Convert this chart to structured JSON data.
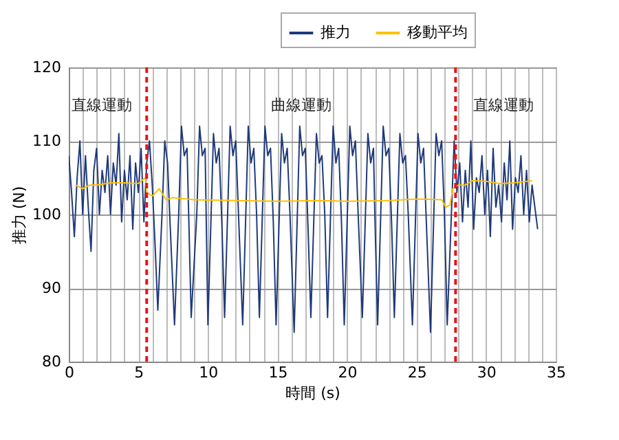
{
  "chart_data": {
    "type": "line",
    "xlabel": "時間 (s)",
    "ylabel": "推力 (N)",
    "xlim": [
      0,
      35
    ],
    "ylim": [
      80,
      120
    ],
    "xticks": [
      0,
      {
        "value": 1,
        "label": null
      },
      {
        "value": 2,
        "label": null
      },
      {
        "value": 3,
        "label": null
      },
      {
        "value": 4,
        "label": null
      },
      5,
      {
        "value": 6,
        "label": null
      },
      {
        "value": 7,
        "label": null
      },
      {
        "value": 8,
        "label": null
      },
      {
        "value": 9,
        "label": null
      },
      10,
      {
        "value": 11,
        "label": null
      },
      {
        "value": 12,
        "label": null
      },
      {
        "value": 13,
        "label": null
      },
      {
        "value": 14,
        "label": null
      },
      15,
      {
        "value": 16,
        "label": null
      },
      {
        "value": 17,
        "label": null
      },
      {
        "value": 18,
        "label": null
      },
      {
        "value": 19,
        "label": null
      },
      20,
      {
        "value": 21,
        "label": null
      },
      {
        "value": 22,
        "label": null
      },
      {
        "value": 23,
        "label": null
      },
      {
        "value": 24,
        "label": null
      },
      25,
      {
        "value": 26,
        "label": null
      },
      {
        "value": 27,
        "label": null
      },
      {
        "value": 28,
        "label": null
      },
      {
        "value": 29,
        "label": null
      },
      30,
      {
        "value": 31,
        "label": null
      },
      {
        "value": 32,
        "label": null
      },
      {
        "value": 33,
        "label": null
      },
      {
        "value": 34,
        "label": null
      },
      35
    ],
    "yticks": [
      80,
      90,
      100,
      110,
      120
    ],
    "grid": true,
    "legend": "top right",
    "marker": "none",
    "annotations": [
      "直線運動",
      "曲線運動",
      "直線運動"
    ],
    "ref_lines": [
      {
        "axis": "x",
        "value": 5.6,
        "color": "#e8141c",
        "line_style": "dashed"
      },
      {
        "axis": "x",
        "value": 27.8,
        "color": "#e8141c",
        "line_style": "dashed"
      }
    ],
    "series": [
      {
        "name": "推力",
        "color": "#1f3a7a",
        "line_style": "solid",
        "x": [
          0,
          0.2,
          0.4,
          0.6,
          0.8,
          1.0,
          1.2,
          1.4,
          1.6,
          1.8,
          2.0,
          2.2,
          2.4,
          2.6,
          2.8,
          3.0,
          3.2,
          3.4,
          3.6,
          3.8,
          4.0,
          4.2,
          4.4,
          4.6,
          4.8,
          5.0,
          5.2,
          5.4,
          5.6,
          5.8,
          6.0,
          6.2,
          6.4,
          6.7,
          6.9,
          7.1,
          7.3,
          7.6,
          7.9,
          8.1,
          8.3,
          8.5,
          8.8,
          9.2,
          9.4,
          9.6,
          9.8,
          10.0,
          10.4,
          10.6,
          10.8,
          11.0,
          11.2,
          11.6,
          11.8,
          12.0,
          12.2,
          12.5,
          12.9,
          13.1,
          13.3,
          13.5,
          13.7,
          14.1,
          14.3,
          14.5,
          14.7,
          14.9,
          15.3,
          15.5,
          15.7,
          15.9,
          16.2,
          16.6,
          16.8,
          17.0,
          17.2,
          17.4,
          17.8,
          18.0,
          18.2,
          18.4,
          18.6,
          19.0,
          19.2,
          19.4,
          19.6,
          19.8,
          20.2,
          20.4,
          20.6,
          20.8,
          21.1,
          21.5,
          21.7,
          21.9,
          22.0,
          22.2,
          22.6,
          22.8,
          23.0,
          23.2,
          23.4,
          23.8,
          24.0,
          24.2,
          24.4,
          24.7,
          25.1,
          25.3,
          25.5,
          25.7,
          26.0,
          26.4,
          26.6,
          26.8,
          27.0,
          27.2,
          27.5,
          27.7,
          27.9,
          28.1,
          28.3,
          28.5,
          28.7,
          28.9,
          29.1,
          29.3,
          29.5,
          29.7,
          29.9,
          30.1,
          30.3,
          30.5,
          30.7,
          30.9,
          31.1,
          31.3,
          31.5,
          31.7,
          31.9,
          32.1,
          32.3,
          32.5,
          32.7,
          32.9,
          33.1,
          33.3,
          33.5,
          33.7
        ],
        "values": [
          108,
          103,
          97,
          105,
          110,
          100,
          108,
          101,
          95,
          106,
          109,
          100,
          106,
          103,
          108,
          100,
          107,
          104,
          111,
          99,
          106,
          102,
          108,
          98,
          107,
          103,
          109,
          99,
          107,
          110,
          104,
          96,
          87,
          100,
          110,
          107,
          98,
          85,
          100,
          112,
          108,
          109,
          86,
          100,
          112,
          108,
          109,
          85,
          111,
          107,
          109,
          99,
          86,
          112,
          108,
          110,
          100,
          85,
          112,
          107,
          109,
          100,
          86,
          112,
          108,
          109,
          99,
          85,
          111,
          107,
          109,
          100,
          84,
          112,
          108,
          109,
          98,
          86,
          111,
          107,
          108,
          100,
          86,
          112,
          107,
          109,
          99,
          85,
          112,
          108,
          110,
          100,
          86,
          111,
          107,
          109,
          100,
          85,
          112,
          108,
          109,
          99,
          86,
          111,
          107,
          108,
          100,
          85,
          111,
          107,
          109,
          99,
          84,
          111,
          108,
          110,
          100,
          85,
          100,
          110,
          103,
          107,
          99,
          106,
          101,
          110,
          98,
          105,
          103,
          108,
          100,
          106,
          97,
          109,
          101,
          104,
          99,
          107,
          102,
          110,
          98,
          105,
          103,
          108,
          100,
          106,
          99,
          104,
          101,
          98
        ]
      },
      {
        "name": "移動平均",
        "color": "#ffc000",
        "line_style": "solid",
        "x": [
          0.5,
          1.0,
          1.5,
          2.0,
          3.0,
          4.0,
          5.0,
          5.5,
          5.6,
          6.0,
          6.5,
          7.0,
          7.5,
          9.0,
          12.0,
          15.0,
          18.0,
          20.0,
          23.0,
          25.0,
          26.8,
          27.1,
          27.4,
          27.6,
          28.0,
          28.5,
          29.0,
          30.0,
          31.0,
          32.0,
          33.3
        ],
        "values": [
          104,
          103.5,
          104,
          104,
          104.3,
          104.3,
          104.2,
          105,
          103,
          102.5,
          103.5,
          102,
          102.3,
          102,
          101.9,
          101.8,
          101.9,
          101.8,
          101.9,
          102.1,
          102,
          101,
          101.3,
          103.5,
          104,
          104,
          104.6,
          104.5,
          104.2,
          104.3,
          104.6
        ]
      }
    ]
  }
}
